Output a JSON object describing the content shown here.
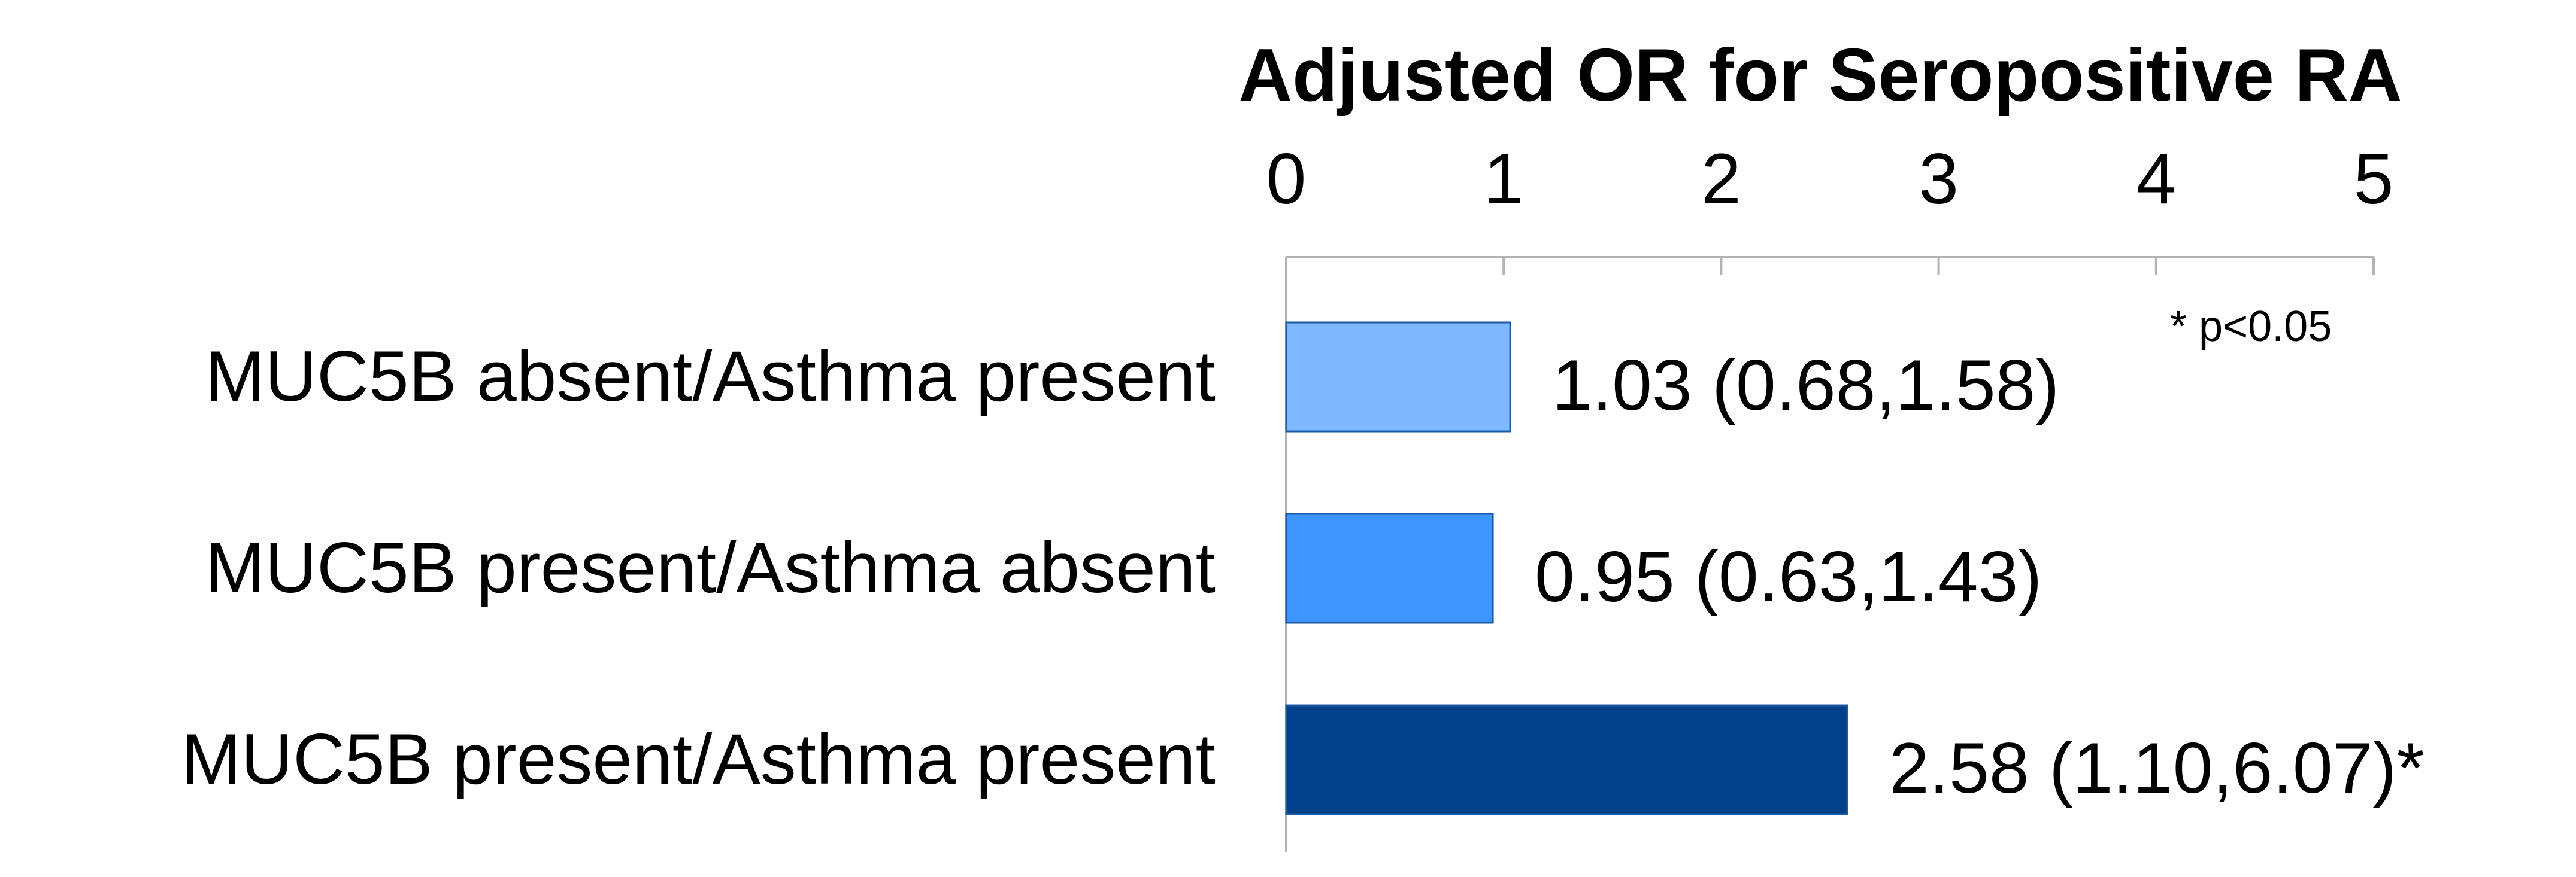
{
  "chart_data": {
    "type": "bar",
    "orientation": "horizontal",
    "title": "Adjusted OR for Seropositive RA",
    "xlabel": "",
    "ylabel": "",
    "xlim": [
      0,
      5
    ],
    "ticks": [
      "0",
      "1",
      "2",
      "3",
      "4",
      "5"
    ],
    "axis_position": "top",
    "grid": false,
    "categories": [
      "MUC5B absent/Asthma present",
      "MUC5B present/Asthma absent",
      "MUC5B present/Asthma present"
    ],
    "values": [
      1.03,
      0.95,
      2.58
    ],
    "data_labels": [
      "1.03 (0.68,1.58)",
      "0.95 (0.63,1.43)",
      "2.58 (1.10,6.07)*"
    ],
    "colors": [
      "#80b8ff",
      "#3d96ff",
      "#004189"
    ],
    "annotation": "* p<0.05"
  }
}
